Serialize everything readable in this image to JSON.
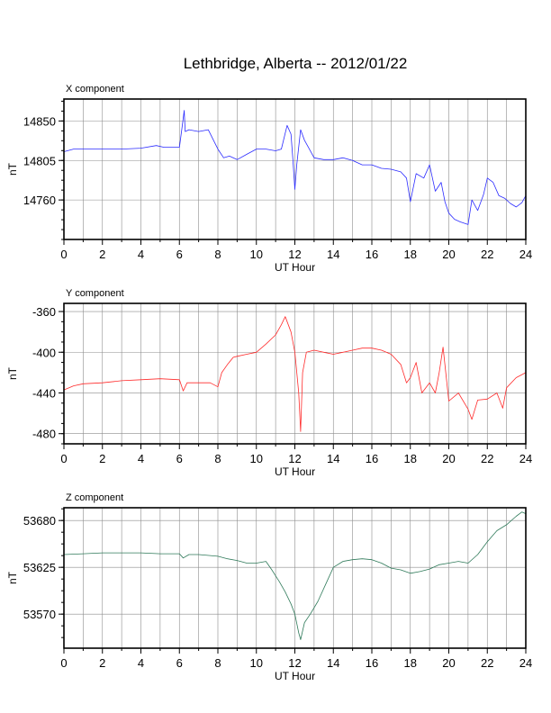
{
  "title": "Lethbridge, Alberta -- 2012/01/22",
  "chart_data": [
    {
      "type": "line",
      "panel_title": "X component",
      "xlabel": "UT Hour",
      "ylabel": "nT",
      "xlim": [
        0,
        24
      ],
      "ylim": [
        14715,
        14875
      ],
      "xticks": [
        0,
        2,
        4,
        6,
        8,
        10,
        12,
        14,
        16,
        18,
        20,
        22,
        24
      ],
      "yticks": [
        14760,
        14805,
        14850
      ],
      "grid": true,
      "color": "#2b2bff",
      "series": [
        {
          "x": [
            0,
            0.5,
            1,
            2,
            3,
            4,
            4.8,
            5.2,
            6.0,
            6.15,
            6.25,
            6.3,
            6.5,
            7,
            7.5,
            8,
            8.3,
            8.6,
            9,
            9.5,
            10,
            10.5,
            11,
            11.3,
            11.6,
            11.8,
            11.9,
            12.0,
            12.1,
            12.3,
            12.5,
            12.7,
            13,
            13.5,
            14,
            14.5,
            15,
            15.5,
            16,
            16.5,
            17,
            17.5,
            17.8,
            18,
            18.3,
            18.7,
            19,
            19.3,
            19.6,
            19.8,
            20,
            20.3,
            20.6,
            21,
            21.2,
            21.5,
            21.8,
            22,
            22.3,
            22.6,
            22.9,
            23.2,
            23.5,
            23.8,
            24
          ],
          "y": [
            14815,
            14818,
            14818,
            14818,
            14818,
            14819,
            14822,
            14820,
            14820,
            14845,
            14862,
            14838,
            14840,
            14838,
            14840,
            14818,
            14808,
            14810,
            14806,
            14812,
            14818,
            14818,
            14816,
            14818,
            14845,
            14835,
            14805,
            14772,
            14800,
            14840,
            14828,
            14820,
            14808,
            14806,
            14806,
            14808,
            14805,
            14800,
            14800,
            14796,
            14795,
            14792,
            14785,
            14758,
            14790,
            14785,
            14800,
            14770,
            14780,
            14758,
            14745,
            14738,
            14735,
            14732,
            14760,
            14748,
            14766,
            14785,
            14780,
            14765,
            14762,
            14756,
            14752,
            14757,
            14765
          ]
        }
      ]
    },
    {
      "type": "line",
      "panel_title": "Y component",
      "xlabel": "UT Hour",
      "ylabel": "nT",
      "xlim": [
        0,
        24
      ],
      "ylim": [
        -490,
        -352
      ],
      "xticks": [
        0,
        2,
        4,
        6,
        8,
        10,
        12,
        14,
        16,
        18,
        20,
        22,
        24
      ],
      "yticks": [
        -360,
        -400,
        -440,
        -480
      ],
      "grid": true,
      "color": "#ff2b2b",
      "series": [
        {
          "x": [
            0,
            0.5,
            1,
            2,
            3,
            4,
            5,
            6.0,
            6.2,
            6.4,
            6.8,
            7.2,
            7.6,
            8.0,
            8.2,
            8.5,
            8.8,
            9.0,
            9.5,
            10,
            10.5,
            11,
            11.3,
            11.5,
            11.8,
            12.0,
            12.2,
            12.3,
            12.4,
            12.6,
            13,
            13.5,
            14,
            14.5,
            15,
            15.5,
            16,
            16.5,
            17,
            17.5,
            17.8,
            18,
            18.3,
            18.6,
            19,
            19.3,
            19.5,
            19.7,
            20,
            20.5,
            21,
            21.2,
            21.5,
            22,
            22.5,
            22.8,
            23,
            23.5,
            24
          ],
          "y": [
            -437,
            -433,
            -431,
            -430,
            -428,
            -427,
            -426,
            -427,
            -438,
            -430,
            -430,
            -430,
            -430,
            -434,
            -420,
            -412,
            -405,
            -404,
            -402,
            -400,
            -392,
            -383,
            -373,
            -365,
            -380,
            -400,
            -440,
            -478,
            -420,
            -400,
            -398,
            -400,
            -402,
            -400,
            -398,
            -396,
            -396,
            -398,
            -402,
            -412,
            -430,
            -425,
            -410,
            -440,
            -430,
            -440,
            -420,
            -395,
            -448,
            -440,
            -456,
            -466,
            -447,
            -446,
            -440,
            -455,
            -435,
            -425,
            -420
          ]
        }
      ]
    },
    {
      "type": "line",
      "panel_title": "Z component",
      "xlabel": "UT Hour",
      "ylabel": "nT",
      "xlim": [
        0,
        24
      ],
      "ylim": [
        53530,
        53695
      ],
      "xticks": [
        0,
        2,
        4,
        6,
        8,
        10,
        12,
        14,
        16,
        18,
        20,
        22,
        24
      ],
      "yticks": [
        53570,
        53625,
        53680
      ],
      "grid": true,
      "color": "#2f7a5a",
      "series": [
        {
          "x": [
            0,
            1,
            2,
            3,
            4,
            5,
            6.0,
            6.2,
            6.5,
            7,
            8,
            8.5,
            9,
            9.5,
            10,
            10.5,
            10.8,
            11.2,
            11.5,
            11.8,
            12.0,
            12.2,
            12.3,
            12.5,
            12.8,
            13.2,
            13.6,
            14,
            14.5,
            15,
            15.5,
            16,
            16.5,
            17,
            17.5,
            18,
            18.5,
            19,
            19.5,
            20,
            20.5,
            21,
            21.5,
            22,
            22.5,
            23,
            23.5,
            23.8,
            24
          ],
          "y": [
            53640,
            53641,
            53642,
            53642,
            53642,
            53641,
            53641,
            53636,
            53640,
            53640,
            53638,
            53635,
            53633,
            53630,
            53630,
            53632,
            53622,
            53608,
            53596,
            53582,
            53570,
            53548,
            53540,
            53560,
            53570,
            53585,
            53605,
            53625,
            53632,
            53634,
            53635,
            53634,
            53630,
            53624,
            53622,
            53618,
            53620,
            53623,
            53628,
            53630,
            53632,
            53630,
            53640,
            53655,
            53668,
            53675,
            53685,
            53690,
            53688
          ]
        }
      ]
    }
  ]
}
